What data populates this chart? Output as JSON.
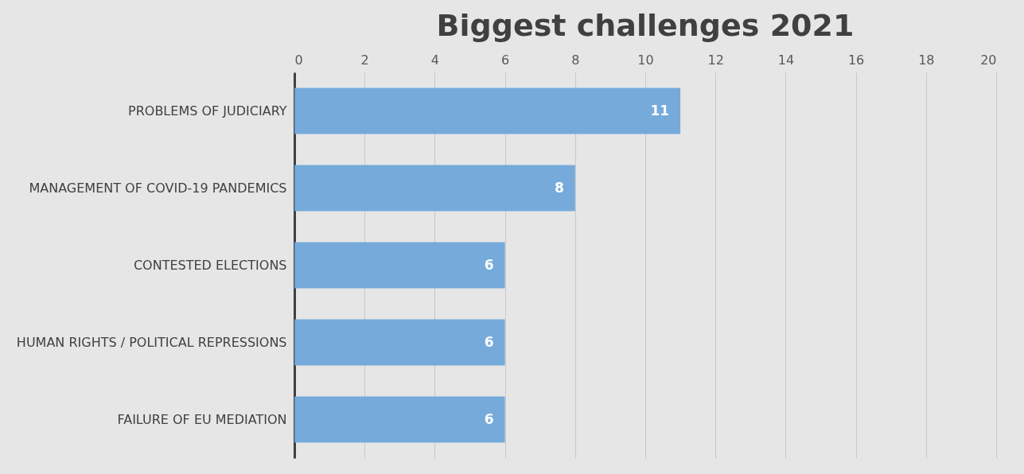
{
  "chart_data": {
    "type": "bar",
    "orientation": "horizontal",
    "title": "Biggest challenges 2021",
    "categories": [
      "PROBLEMS OF JUDICIARY",
      "MANAGEMENT OF COVID-19 PANDEMICS",
      "CONTESTED ELECTIONS",
      "HUMAN RIGHTS / POLITICAL REPRESSIONS",
      "FAILURE OF EU MEDIATION"
    ],
    "values": [
      11,
      8,
      6,
      6,
      6
    ],
    "color": "#6fa6da",
    "xlim": [
      0,
      20
    ],
    "xticks": [
      0,
      2,
      4,
      6,
      8,
      10,
      12,
      14,
      16,
      18,
      20
    ],
    "grid": "x",
    "data_labels": true
  }
}
